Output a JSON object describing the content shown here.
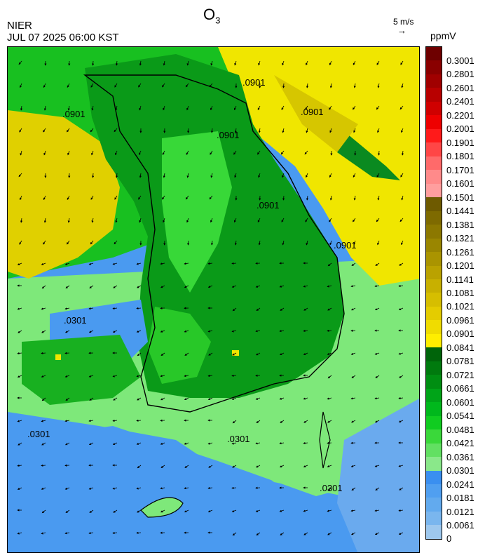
{
  "header": {
    "title": "O",
    "title_sub": "3",
    "agency": "NIER",
    "timestamp": "JUL 07 2025 06:00 KST",
    "vector_ref_label": "5 m/s",
    "vector_ref_arrow": "→",
    "unit": "ppmV"
  },
  "map": {
    "contour_labels": [
      ".0301",
      ".0301",
      ".0301",
      ".0301",
      ".0901",
      ".0901",
      ".0901",
      ".0901",
      ".0901",
      ".0901"
    ]
  },
  "legend": {
    "ticks": [
      "0.3001",
      "0.2801",
      "0.2601",
      "0.2401",
      "0.2201",
      "0.2001",
      "0.1901",
      "0.1801",
      "0.1701",
      "0.1601",
      "0.1501",
      "0.1441",
      "0.1381",
      "0.1321",
      "0.1261",
      "0.1201",
      "0.1141",
      "0.1081",
      "0.1021",
      "0.0961",
      "0.0901",
      "0.0841",
      "0.0781",
      "0.0721",
      "0.0661",
      "0.0601",
      "0.0541",
      "0.0481",
      "0.0421",
      "0.0361",
      "0.0301",
      "0.0241",
      "0.0181",
      "0.0121",
      "0.0061",
      "0"
    ],
    "colors": [
      "#6e0000",
      "#8a0000",
      "#a00000",
      "#b80000",
      "#d00000",
      "#ee0000",
      "#ff1a1a",
      "#ff4646",
      "#ff6a6a",
      "#ff8a8a",
      "#ff9e9e",
      "#6e5a00",
      "#7e6a00",
      "#8c7800",
      "#9a8600",
      "#aa9400",
      "#baa200",
      "#c8b000",
      "#d6be00",
      "#e4cc00",
      "#f0dc00",
      "#ffee00",
      "#00640a",
      "#007a0e",
      "#008e12",
      "#00a418",
      "#00b81c",
      "#10cc20",
      "#3ad83a",
      "#62e062",
      "#8ae88a",
      "#3a8ff0",
      "#509ff0",
      "#62aaee",
      "#7ab6ee",
      "#9ec8ee"
    ]
  }
}
